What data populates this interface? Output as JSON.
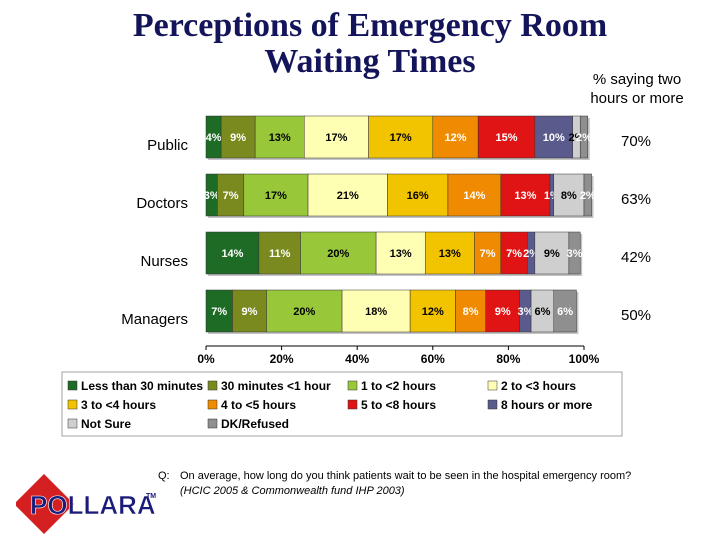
{
  "title_line1": "Perceptions of Emergency Room",
  "title_line2": "Waiting Times",
  "subtitle_line1": "% saying two",
  "subtitle_line2": "hours or more",
  "question_prefix": "Q:",
  "question": "On average, how long do you think patients wait to be seen in the hospital emergency room?",
  "source": "(HCIC 2005 & Commonwealth fund IHP 2003)",
  "logo_text": "POLLARA",
  "logo_tm": "TM",
  "chart_data": {
    "type": "bar",
    "orientation": "horizontal",
    "stacked": true,
    "categories": [
      "Public",
      "Doctors",
      "Nurses",
      "Managers"
    ],
    "xlim": [
      0,
      100
    ],
    "x_ticks": [
      "0%",
      "20%",
      "40%",
      "60%",
      "80%",
      "100%"
    ],
    "series": [
      {
        "name": "Less than 30 minutes",
        "color": "#1e6b26",
        "values": [
          4,
          3,
          14,
          7
        ],
        "labels": [
          "4%",
          "3%",
          "14%",
          "7%"
        ]
      },
      {
        "name": "30 minutes <1 hour",
        "color": "#7a8a1e",
        "values": [
          9,
          7,
          11,
          9
        ],
        "labels": [
          "9%",
          "7%",
          "11%",
          "9%"
        ]
      },
      {
        "name": "1 to <2 hours",
        "color": "#98c83a",
        "values": [
          13,
          17,
          20,
          20
        ],
        "labels": [
          "13%",
          "17%",
          "20%",
          "20%"
        ]
      },
      {
        "name": "2 to <3 hours",
        "color": "#ffffb4",
        "values": [
          17,
          21,
          13,
          18
        ],
        "labels": [
          "17%",
          "21%",
          "13%",
          "18%"
        ]
      },
      {
        "name": "3 to <4 hours",
        "color": "#f2c400",
        "values": [
          17,
          16,
          13,
          12
        ],
        "labels": [
          "17%",
          "16%",
          "13%",
          "12%"
        ]
      },
      {
        "name": "4 to <5 hours",
        "color": "#f08a00",
        "values": [
          12,
          14,
          7,
          8
        ],
        "labels": [
          "12%",
          "14%",
          "7%",
          "8%"
        ]
      },
      {
        "name": "5 to <8 hours",
        "color": "#e01414",
        "values": [
          15,
          13,
          7,
          9
        ],
        "labels": [
          "15%",
          "13%",
          "7%",
          "9%"
        ]
      },
      {
        "name": "8 hours or more",
        "color": "#5a5a8c",
        "values": [
          10,
          1,
          2,
          3
        ],
        "labels": [
          "10%",
          "1%",
          "2%",
          "3%"
        ]
      },
      {
        "name": "Not Sure",
        "color": "#cfcfcf",
        "values": [
          2,
          8,
          9,
          6
        ],
        "labels": [
          "2%",
          "8%",
          "9%",
          "6%"
        ]
      },
      {
        "name": "DK/Refused",
        "color": "#8f8f8f",
        "values": [
          2,
          2,
          3,
          6
        ],
        "labels": [
          "2%",
          "2%",
          "3%",
          "6%"
        ]
      }
    ],
    "two_hours_or_more": [
      "70%",
      "63%",
      "42%",
      "50%"
    ],
    "legend_position": "bottom"
  }
}
